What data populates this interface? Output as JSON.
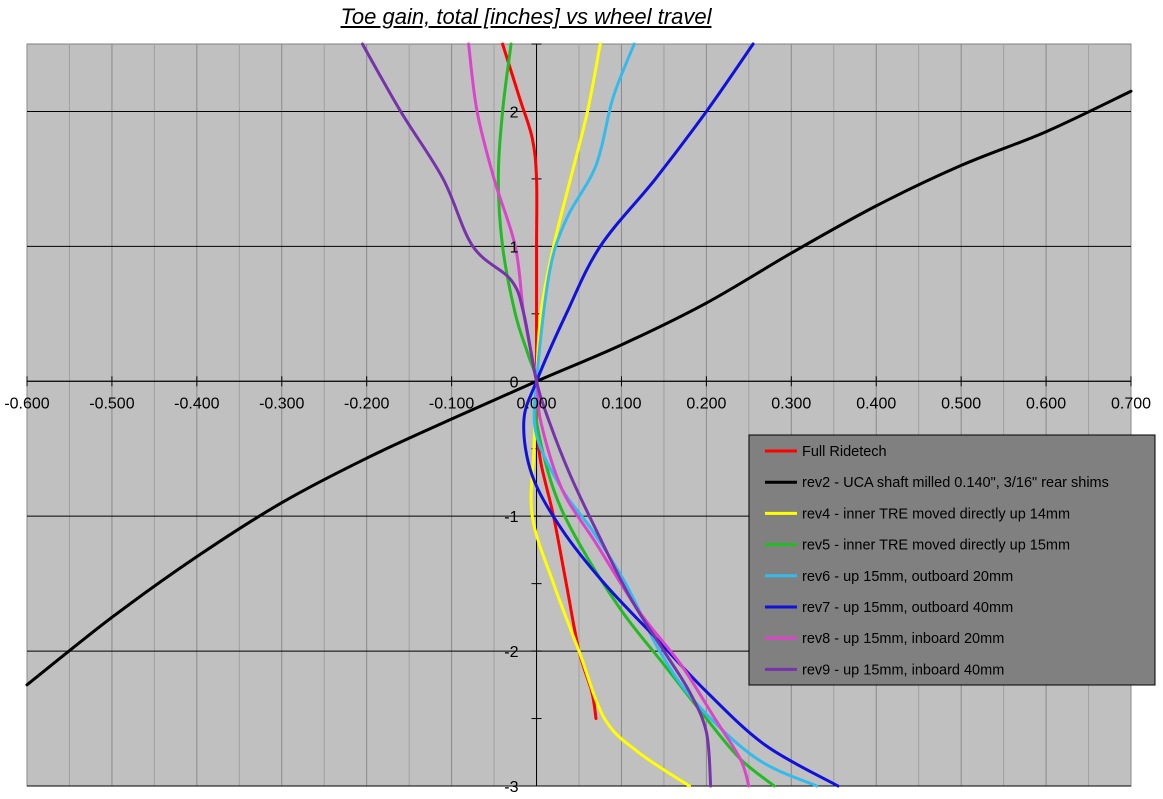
{
  "chart_data": {
    "type": "line",
    "title": "Toe gain, total [inches] vs wheel travel",
    "xlabel": "",
    "ylabel": "",
    "xlim": [
      -0.6,
      0.7
    ],
    "ylim": [
      -3,
      2.5
    ],
    "x_ticks": [
      "-0.600",
      "-0.500",
      "-0.400",
      "-0.300",
      "-0.200",
      "-0.100",
      "0.000",
      "0.100",
      "0.200",
      "0.300",
      "0.400",
      "0.500",
      "0.600",
      "0.700"
    ],
    "y_ticks": [
      "2",
      "1",
      "0",
      "-1",
      "-2",
      "-3"
    ],
    "x_grid_step": 0.05,
    "y_grid_major": 1,
    "y_minor_tick": 0.5,
    "plot_background": "#c0c0c0",
    "legend_background": "#808080",
    "legend_position": "right, below x-axis",
    "grid": true,
    "series": [
      {
        "name": "Full Ridetech",
        "color": "#ff0000",
        "points": [
          [
            -0.04,
            2.5
          ],
          [
            -0.02,
            2.1
          ],
          [
            -0.005,
            1.8
          ],
          [
            0.0,
            1.5
          ],
          [
            0.0,
            1.0
          ],
          [
            0.0,
            0.5
          ],
          [
            0.0,
            0.0
          ],
          [
            0.0,
            -0.3
          ],
          [
            0.005,
            -0.6
          ],
          [
            0.02,
            -1.0
          ],
          [
            0.035,
            -1.5
          ],
          [
            0.05,
            -2.0
          ],
          [
            0.065,
            -2.3
          ],
          [
            0.07,
            -2.5
          ]
        ]
      },
      {
        "name": "rev2 - UCA shaft milled 0.140\", 3/16\" rear shims",
        "color": "#000000",
        "points": [
          [
            -0.6,
            -2.25
          ],
          [
            -0.5,
            -1.75
          ],
          [
            -0.4,
            -1.3
          ],
          [
            -0.3,
            -0.9
          ],
          [
            -0.2,
            -0.57
          ],
          [
            -0.1,
            -0.28
          ],
          [
            0.0,
            0.0
          ],
          [
            0.1,
            0.27
          ],
          [
            0.2,
            0.58
          ],
          [
            0.3,
            0.95
          ],
          [
            0.4,
            1.3
          ],
          [
            0.5,
            1.6
          ],
          [
            0.6,
            1.85
          ],
          [
            0.7,
            2.15
          ]
        ]
      },
      {
        "name": "rev4 - inner TRE moved directly up 14mm",
        "color": "#ffff00",
        "points": [
          [
            0.075,
            2.5
          ],
          [
            0.06,
            2.0
          ],
          [
            0.04,
            1.5
          ],
          [
            0.02,
            1.0
          ],
          [
            0.005,
            0.5
          ],
          [
            0.0,
            0.0
          ],
          [
            -0.003,
            -0.5
          ],
          [
            -0.005,
            -1.0
          ],
          [
            0.02,
            -1.5
          ],
          [
            0.05,
            -2.0
          ],
          [
            0.08,
            -2.5
          ],
          [
            0.12,
            -2.75
          ],
          [
            0.18,
            -3.0
          ]
        ]
      },
      {
        "name": "rev5 - inner TRE moved directly up 15mm",
        "color": "#22bb22",
        "points": [
          [
            -0.03,
            2.5
          ],
          [
            -0.04,
            2.0
          ],
          [
            -0.045,
            1.5
          ],
          [
            -0.04,
            1.0
          ],
          [
            -0.025,
            0.5
          ],
          [
            -0.01,
            0.2
          ],
          [
            0.0,
            0.0
          ],
          [
            0.0,
            -0.3
          ],
          [
            0.02,
            -0.8
          ],
          [
            0.05,
            -1.2
          ],
          [
            0.1,
            -1.7
          ],
          [
            0.15,
            -2.1
          ],
          [
            0.2,
            -2.5
          ],
          [
            0.24,
            -2.8
          ],
          [
            0.28,
            -3.0
          ]
        ]
      },
      {
        "name": "rev6 - up 15mm, outboard 20mm",
        "color": "#33bbee",
        "points": [
          [
            0.115,
            2.5
          ],
          [
            0.09,
            2.1
          ],
          [
            0.07,
            1.6
          ],
          [
            0.035,
            1.2
          ],
          [
            0.015,
            0.8
          ],
          [
            0.0,
            0.0
          ],
          [
            0.0,
            -0.4
          ],
          [
            0.03,
            -0.8
          ],
          [
            0.065,
            -1.1
          ],
          [
            0.105,
            -1.5
          ],
          [
            0.145,
            -2.0
          ],
          [
            0.19,
            -2.4
          ],
          [
            0.26,
            -2.8
          ],
          [
            0.33,
            -3.0
          ]
        ]
      },
      {
        "name": "rev7 - up 15mm, outboard 40mm",
        "color": "#1111dd",
        "points": [
          [
            0.255,
            2.5
          ],
          [
            0.2,
            2.0
          ],
          [
            0.14,
            1.5
          ],
          [
            0.075,
            1.0
          ],
          [
            0.035,
            0.5
          ],
          [
            0.0,
            0.0
          ],
          [
            -0.015,
            -0.3
          ],
          [
            -0.005,
            -0.7
          ],
          [
            0.03,
            -1.1
          ],
          [
            0.08,
            -1.5
          ],
          [
            0.14,
            -1.9
          ],
          [
            0.2,
            -2.3
          ],
          [
            0.27,
            -2.7
          ],
          [
            0.355,
            -3.0
          ]
        ]
      },
      {
        "name": "rev8 - up 15mm, inboard 20mm",
        "color": "#dd44cc",
        "points": [
          [
            -0.08,
            2.5
          ],
          [
            -0.07,
            2.0
          ],
          [
            -0.05,
            1.5
          ],
          [
            -0.025,
            1.0
          ],
          [
            -0.015,
            0.5
          ],
          [
            0.0,
            0.0
          ],
          [
            0.005,
            -0.3
          ],
          [
            0.03,
            -0.8
          ],
          [
            0.07,
            -1.2
          ],
          [
            0.12,
            -1.7
          ],
          [
            0.17,
            -2.1
          ],
          [
            0.21,
            -2.5
          ],
          [
            0.24,
            -2.8
          ],
          [
            0.25,
            -3.0
          ]
        ]
      },
      {
        "name": "rev9 - up 15mm, inboard 40mm",
        "color": "#7733aa",
        "points": [
          [
            -0.205,
            2.5
          ],
          [
            -0.16,
            2.0
          ],
          [
            -0.11,
            1.5
          ],
          [
            -0.075,
            1.0
          ],
          [
            -0.03,
            0.75
          ],
          [
            -0.015,
            0.5
          ],
          [
            0.0,
            0.0
          ],
          [
            0.015,
            -0.3
          ],
          [
            0.04,
            -0.7
          ],
          [
            0.07,
            -1.1
          ],
          [
            0.11,
            -1.6
          ],
          [
            0.15,
            -2.0
          ],
          [
            0.18,
            -2.3
          ],
          [
            0.2,
            -2.6
          ],
          [
            0.205,
            -3.0
          ]
        ]
      }
    ]
  }
}
